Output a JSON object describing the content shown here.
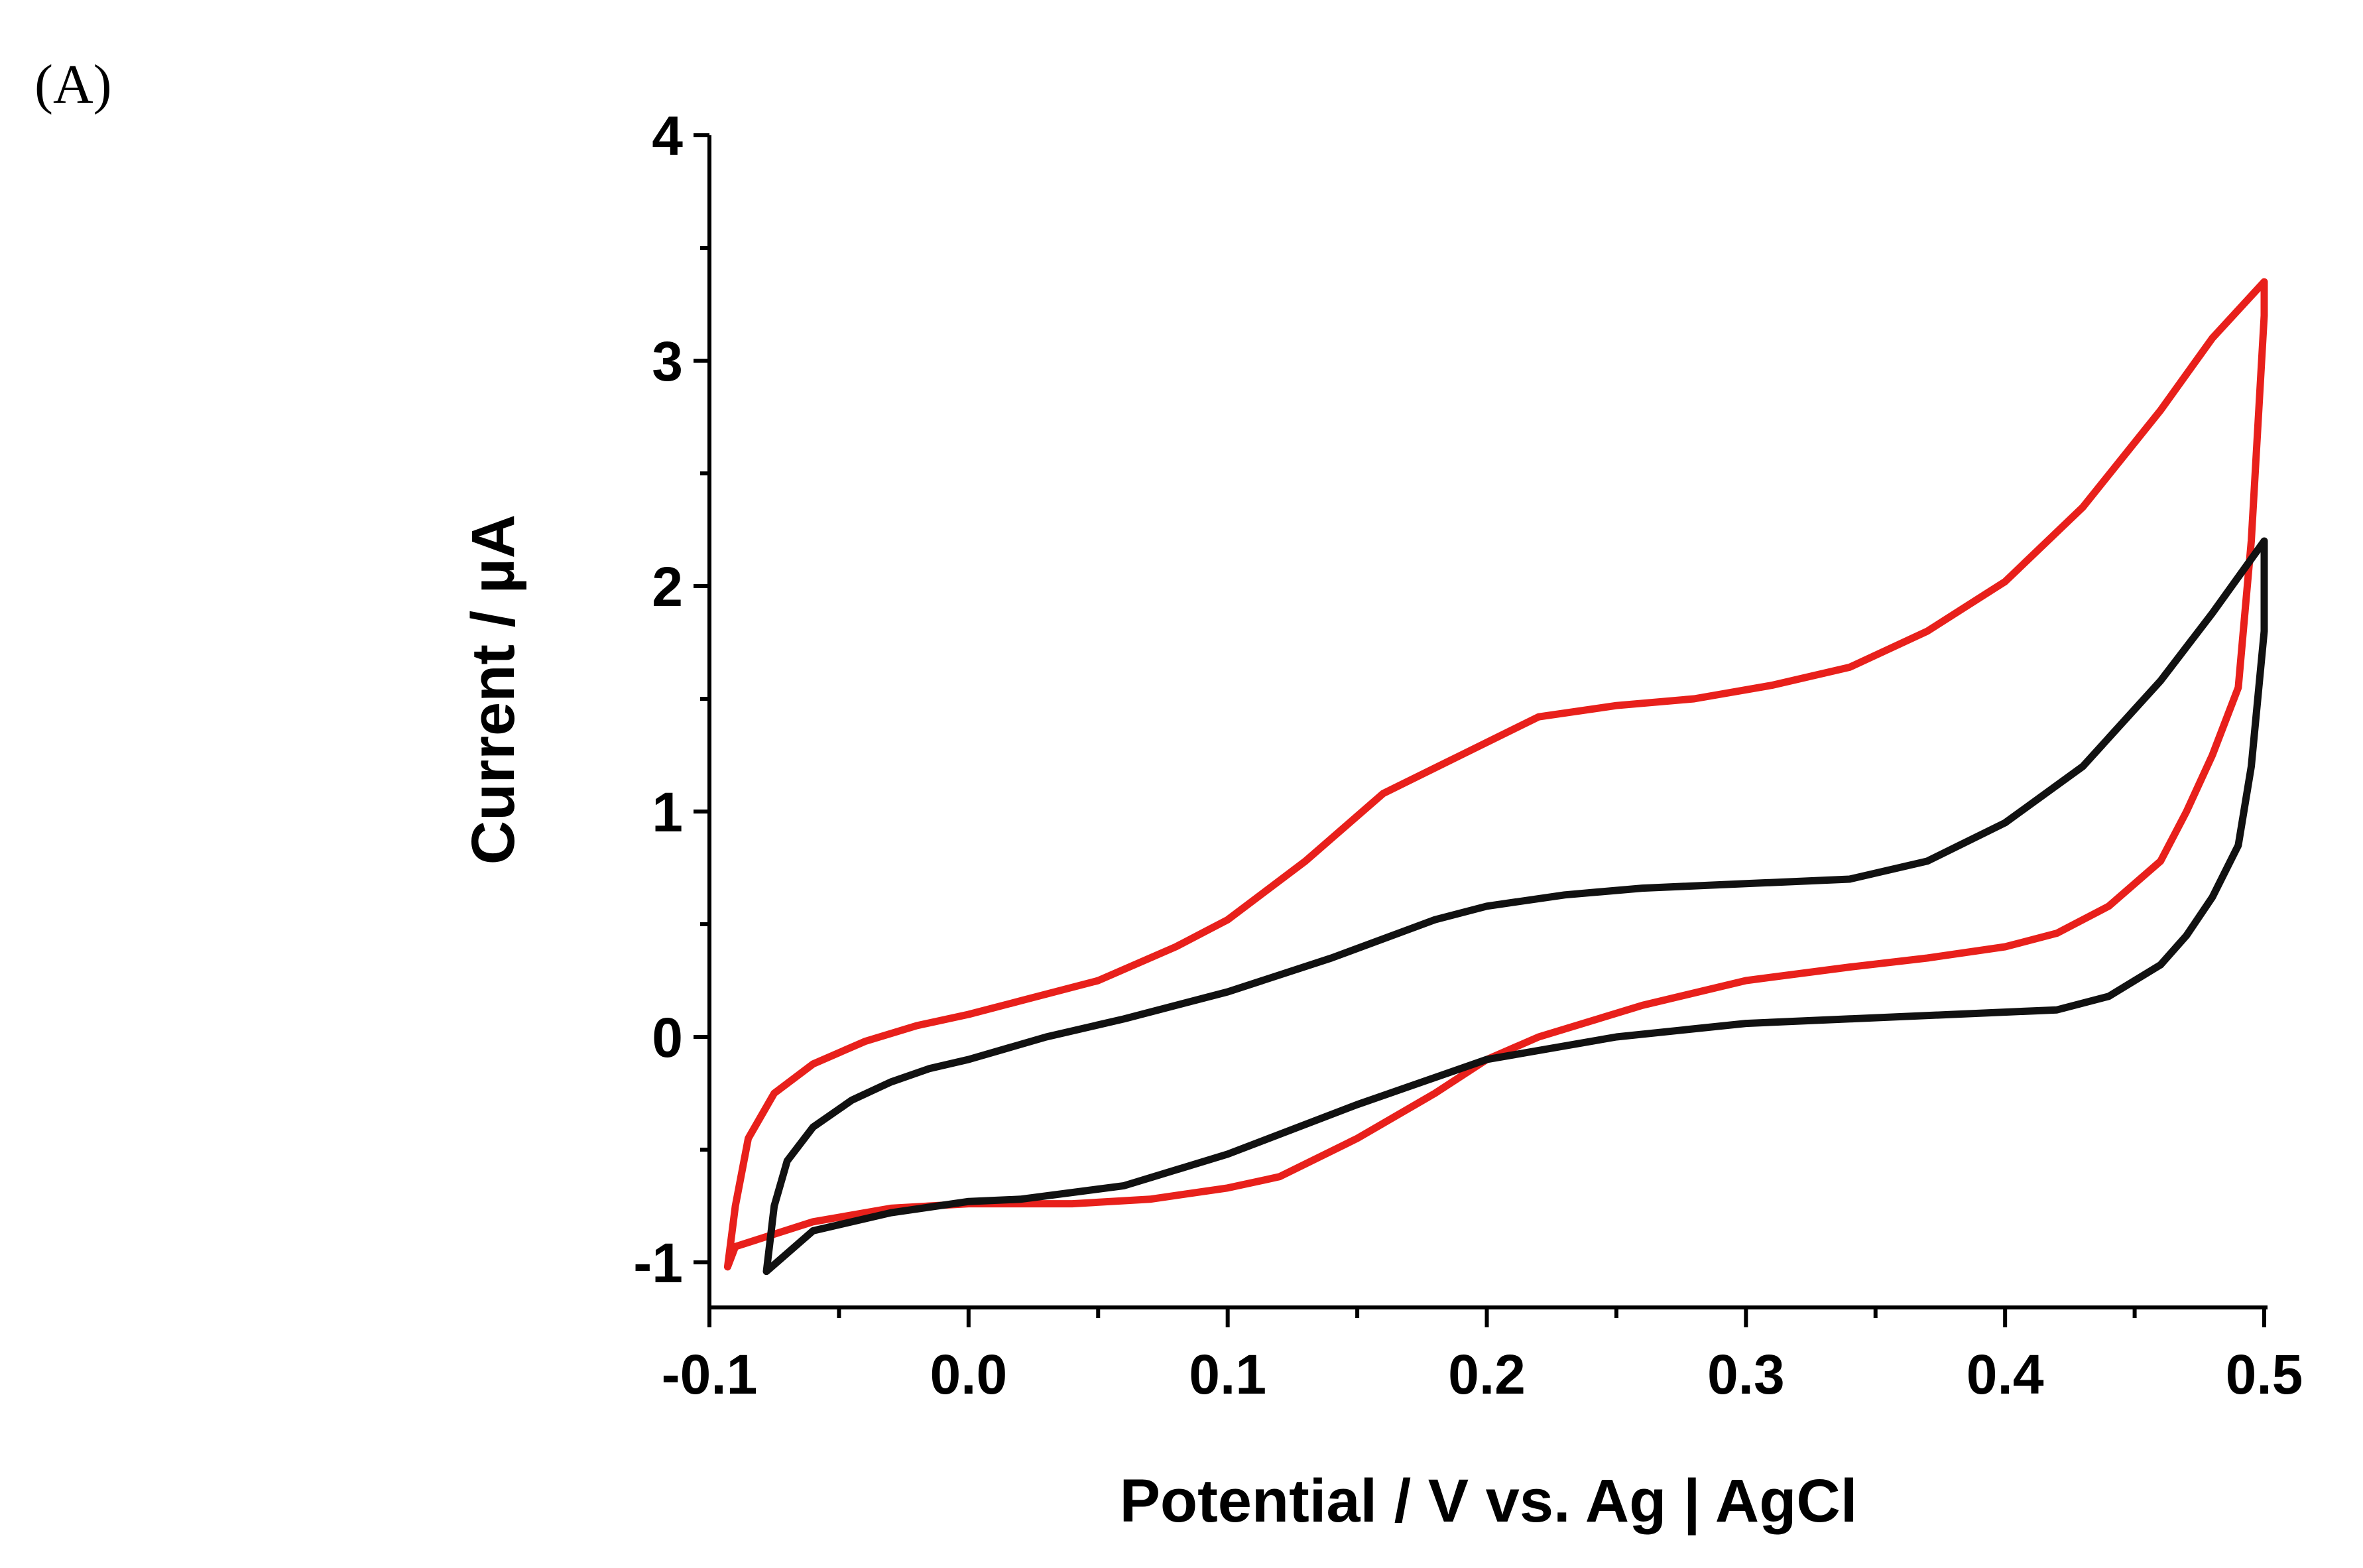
{
  "panel_label": "(A)",
  "chart_data": {
    "type": "line",
    "title": "",
    "xlabel": "Potential / V vs. Ag | AgCl",
    "ylabel": "Current / µA",
    "xlim": [
      -0.1,
      0.5
    ],
    "ylim": [
      -1.2,
      4.0
    ],
    "xticks": [
      -0.1,
      0.0,
      0.1,
      0.2,
      0.3,
      0.4,
      0.5
    ],
    "xtick_labels": [
      "-0.1",
      "0.0",
      "0.1",
      "0.2",
      "0.3",
      "0.4",
      "0.5"
    ],
    "yticks": [
      -1,
      0,
      1,
      2,
      3,
      4
    ],
    "ytick_labels": [
      "-1",
      "0",
      "1",
      "2",
      "3",
      "4"
    ],
    "series": [
      {
        "name": "red",
        "color": "#e8201b",
        "x": [
          -0.093,
          -0.09,
          -0.085,
          -0.075,
          -0.06,
          -0.04,
          -0.02,
          0.0,
          0.02,
          0.05,
          0.08,
          0.1,
          0.13,
          0.16,
          0.19,
          0.22,
          0.25,
          0.28,
          0.31,
          0.34,
          0.37,
          0.4,
          0.43,
          0.46,
          0.48,
          0.5,
          0.5,
          0.495,
          0.49,
          0.48,
          0.47,
          0.46,
          0.44,
          0.42,
          0.4,
          0.37,
          0.34,
          0.3,
          0.26,
          0.22,
          0.2,
          0.18,
          0.15,
          0.12,
          0.1,
          0.07,
          0.04,
          0.0,
          -0.03,
          -0.06,
          -0.09,
          -0.093
        ],
        "y": [
          -1.02,
          -0.75,
          -0.45,
          -0.25,
          -0.12,
          -0.02,
          0.05,
          0.1,
          0.16,
          0.25,
          0.4,
          0.52,
          0.78,
          1.08,
          1.25,
          1.42,
          1.47,
          1.5,
          1.56,
          1.64,
          1.8,
          2.02,
          2.35,
          2.78,
          3.1,
          3.35,
          3.2,
          2.2,
          1.55,
          1.25,
          1.0,
          0.78,
          0.58,
          0.46,
          0.4,
          0.35,
          0.31,
          0.25,
          0.14,
          0.0,
          -0.1,
          -0.25,
          -0.45,
          -0.62,
          -0.67,
          -0.72,
          -0.74,
          -0.74,
          -0.76,
          -0.82,
          -0.93,
          -1.02
        ]
      },
      {
        "name": "black",
        "color": "#111111",
        "x": [
          -0.078,
          -0.075,
          -0.07,
          -0.06,
          -0.045,
          -0.03,
          -0.015,
          0.0,
          0.03,
          0.06,
          0.1,
          0.14,
          0.18,
          0.2,
          0.23,
          0.26,
          0.3,
          0.34,
          0.37,
          0.4,
          0.43,
          0.46,
          0.48,
          0.5,
          0.5,
          0.495,
          0.49,
          0.48,
          0.47,
          0.46,
          0.44,
          0.42,
          0.38,
          0.34,
          0.3,
          0.25,
          0.2,
          0.15,
          0.1,
          0.06,
          0.02,
          0.0,
          -0.03,
          -0.06,
          -0.078
        ],
        "y": [
          -1.04,
          -0.75,
          -0.55,
          -0.4,
          -0.28,
          -0.2,
          -0.14,
          -0.1,
          0.0,
          0.08,
          0.2,
          0.35,
          0.52,
          0.58,
          0.63,
          0.66,
          0.68,
          0.7,
          0.78,
          0.95,
          1.2,
          1.58,
          1.88,
          2.2,
          1.8,
          1.2,
          0.85,
          0.62,
          0.45,
          0.32,
          0.18,
          0.12,
          0.1,
          0.08,
          0.06,
          0.0,
          -0.1,
          -0.3,
          -0.52,
          -0.66,
          -0.72,
          -0.73,
          -0.78,
          -0.86,
          -1.04
        ]
      }
    ]
  }
}
